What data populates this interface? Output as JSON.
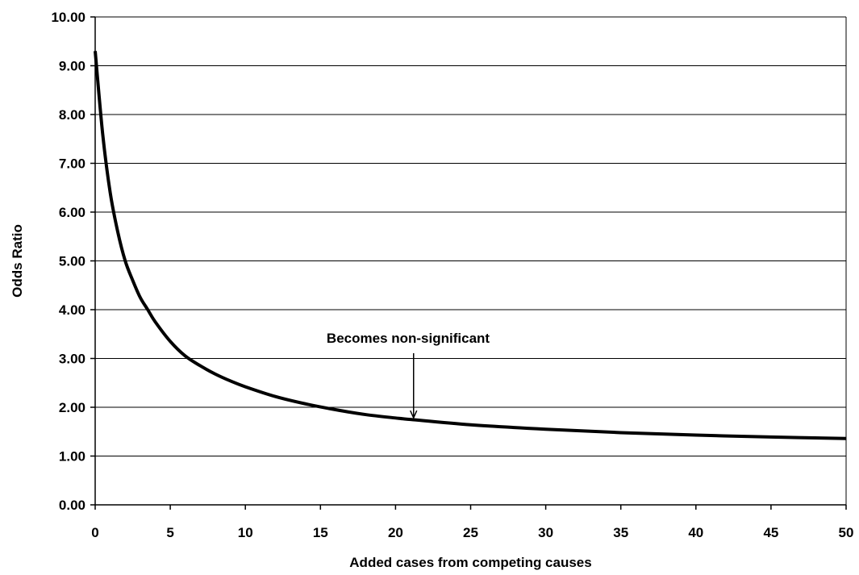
{
  "chart_data": {
    "type": "line",
    "title": "",
    "xlabel": "Added cases from competing causes",
    "ylabel": "Odds Ratio",
    "xlim": [
      0,
      50
    ],
    "ylim": [
      0,
      10
    ],
    "x_ticks": [
      0,
      5,
      10,
      15,
      20,
      25,
      30,
      35,
      40,
      45,
      50
    ],
    "x_tick_labels": [
      "0",
      "5",
      "10",
      "15",
      "20",
      "25",
      "30",
      "35",
      "40",
      "45",
      "50"
    ],
    "y_ticks": [
      0,
      1,
      2,
      3,
      4,
      5,
      6,
      7,
      8,
      9,
      10
    ],
    "y_tick_labels": [
      "0.00",
      "1.00",
      "2.00",
      "3.00",
      "4.00",
      "5.00",
      "6.00",
      "7.00",
      "8.00",
      "9.00",
      "10.00"
    ],
    "grid": "horizontal",
    "legend": "none",
    "series": [
      {
        "x": [
          0,
          0.5,
          1,
          1.5,
          2,
          2.5,
          3,
          3.5,
          4,
          5,
          6,
          7,
          8,
          9,
          10,
          12,
          14,
          16,
          18,
          20,
          21,
          25,
          30,
          35,
          40,
          45,
          50
        ],
        "y": [
          9.3,
          7.6,
          6.4,
          5.6,
          5.0,
          4.6,
          4.25,
          4.0,
          3.75,
          3.35,
          3.05,
          2.85,
          2.68,
          2.54,
          2.42,
          2.22,
          2.07,
          1.95,
          1.85,
          1.78,
          1.75,
          1.64,
          1.55,
          1.48,
          1.43,
          1.39,
          1.36
        ],
        "color": "#000000"
      }
    ],
    "annotations": [
      {
        "text": "Becomes non-significant",
        "x": 21.2,
        "y": 1.75
      }
    ]
  }
}
